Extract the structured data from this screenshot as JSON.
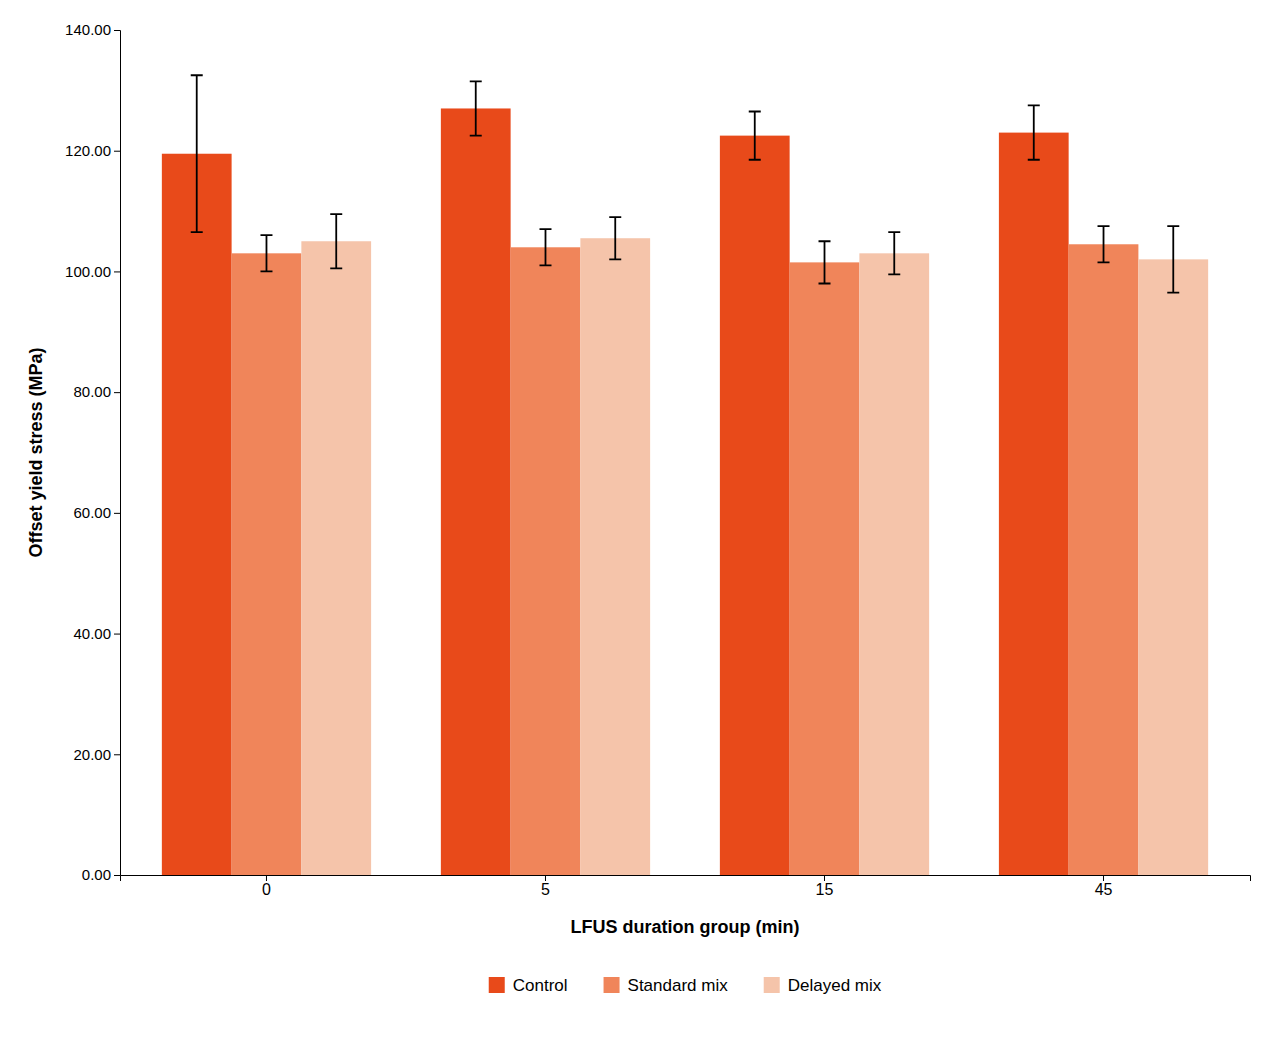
{
  "chart_data": {
    "type": "bar",
    "categories": [
      "0",
      "5",
      "15",
      "45"
    ],
    "series": [
      {
        "name": "Control",
        "color": "#E84A1A",
        "values": [
          119.5,
          127.0,
          122.5,
          123.0
        ],
        "errors": [
          13.0,
          4.5,
          4.0,
          4.5
        ]
      },
      {
        "name": "Standard mix",
        "color": "#F0855A",
        "values": [
          103.0,
          104.0,
          101.5,
          104.5
        ],
        "errors": [
          3.0,
          3.0,
          3.5,
          3.0
        ]
      },
      {
        "name": "Delayed mix",
        "color": "#F5C4AA",
        "values": [
          105.0,
          105.5,
          103.0,
          102.0
        ],
        "errors": [
          4.5,
          3.5,
          3.5,
          5.5
        ]
      }
    ],
    "xlabel": "LFUS duration group (min)",
    "ylabel": "Offset yield stress (MPa)",
    "ylim": [
      0,
      140
    ],
    "yticks": [
      {
        "value": 0,
        "label": "0.00"
      },
      {
        "value": 20,
        "label": "20.00"
      },
      {
        "value": 40,
        "label": "40.00"
      },
      {
        "value": 60,
        "label": "60.00"
      },
      {
        "value": 80,
        "label": "80.00"
      },
      {
        "value": 100,
        "label": "100.00"
      },
      {
        "value": 120,
        "label": "120.00"
      },
      {
        "value": 140,
        "label": "140.00"
      }
    ],
    "grid": false,
    "legend": "bottom"
  }
}
